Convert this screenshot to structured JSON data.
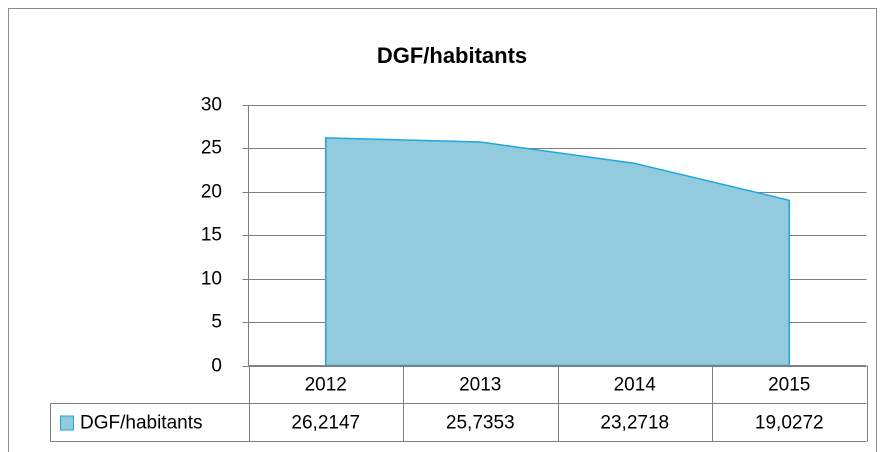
{
  "chart_data": {
    "type": "area",
    "title": "DGF/habitants",
    "categories": [
      "2012",
      "2013",
      "2014",
      "2015"
    ],
    "series": [
      {
        "name": "DGF/habitants",
        "color": "#92cbdd",
        "line_color": "#1ea6de",
        "values": [
          26.2147,
          25.7353,
          23.2718,
          19.0272
        ],
        "value_labels": [
          "26,2147",
          "25,7353",
          "23,2718",
          "19,0272"
        ]
      }
    ],
    "ylim": [
      0,
      30
    ],
    "yticks": [
      0,
      5,
      10,
      15,
      20,
      25,
      30
    ],
    "grid": true,
    "data_table": true
  }
}
